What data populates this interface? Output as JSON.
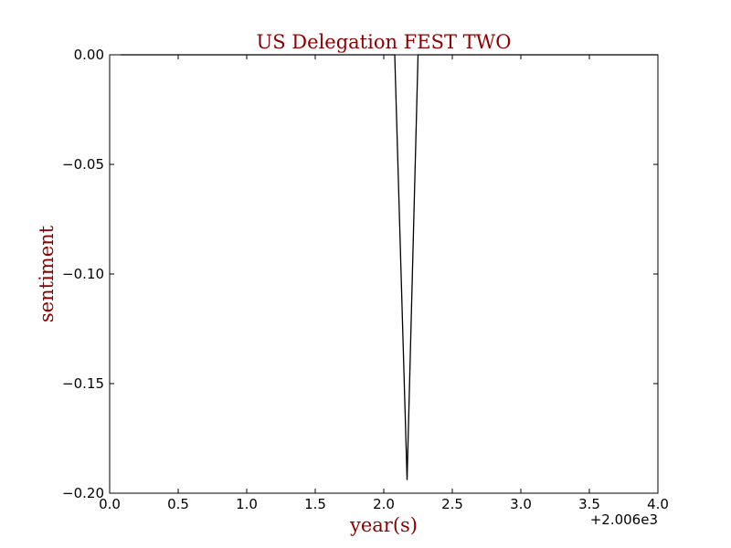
{
  "chart_data": {
    "type": "line",
    "title": "US Delegation FEST TWO",
    "xlabel": "year(s)",
    "ylabel": "sentiment",
    "x_offset_label": "+2.006e3",
    "xlim": [
      0.0,
      4.0
    ],
    "ylim": [
      -0.2,
      0.0
    ],
    "x_ticks": [
      "0.0",
      "0.5",
      "1.0",
      "1.5",
      "2.0",
      "2.5",
      "3.0",
      "3.5",
      "4.0"
    ],
    "y_ticks": [
      "0.00",
      "−0.05",
      "−0.10",
      "−0.15",
      "−0.20"
    ],
    "grid": false,
    "series": [
      {
        "color": "#000000",
        "x": [
          0.08,
          2.08,
          2.17,
          2.25,
          4.0
        ],
        "y": [
          0.0,
          0.0,
          -0.194,
          0.0,
          0.0
        ]
      }
    ]
  }
}
